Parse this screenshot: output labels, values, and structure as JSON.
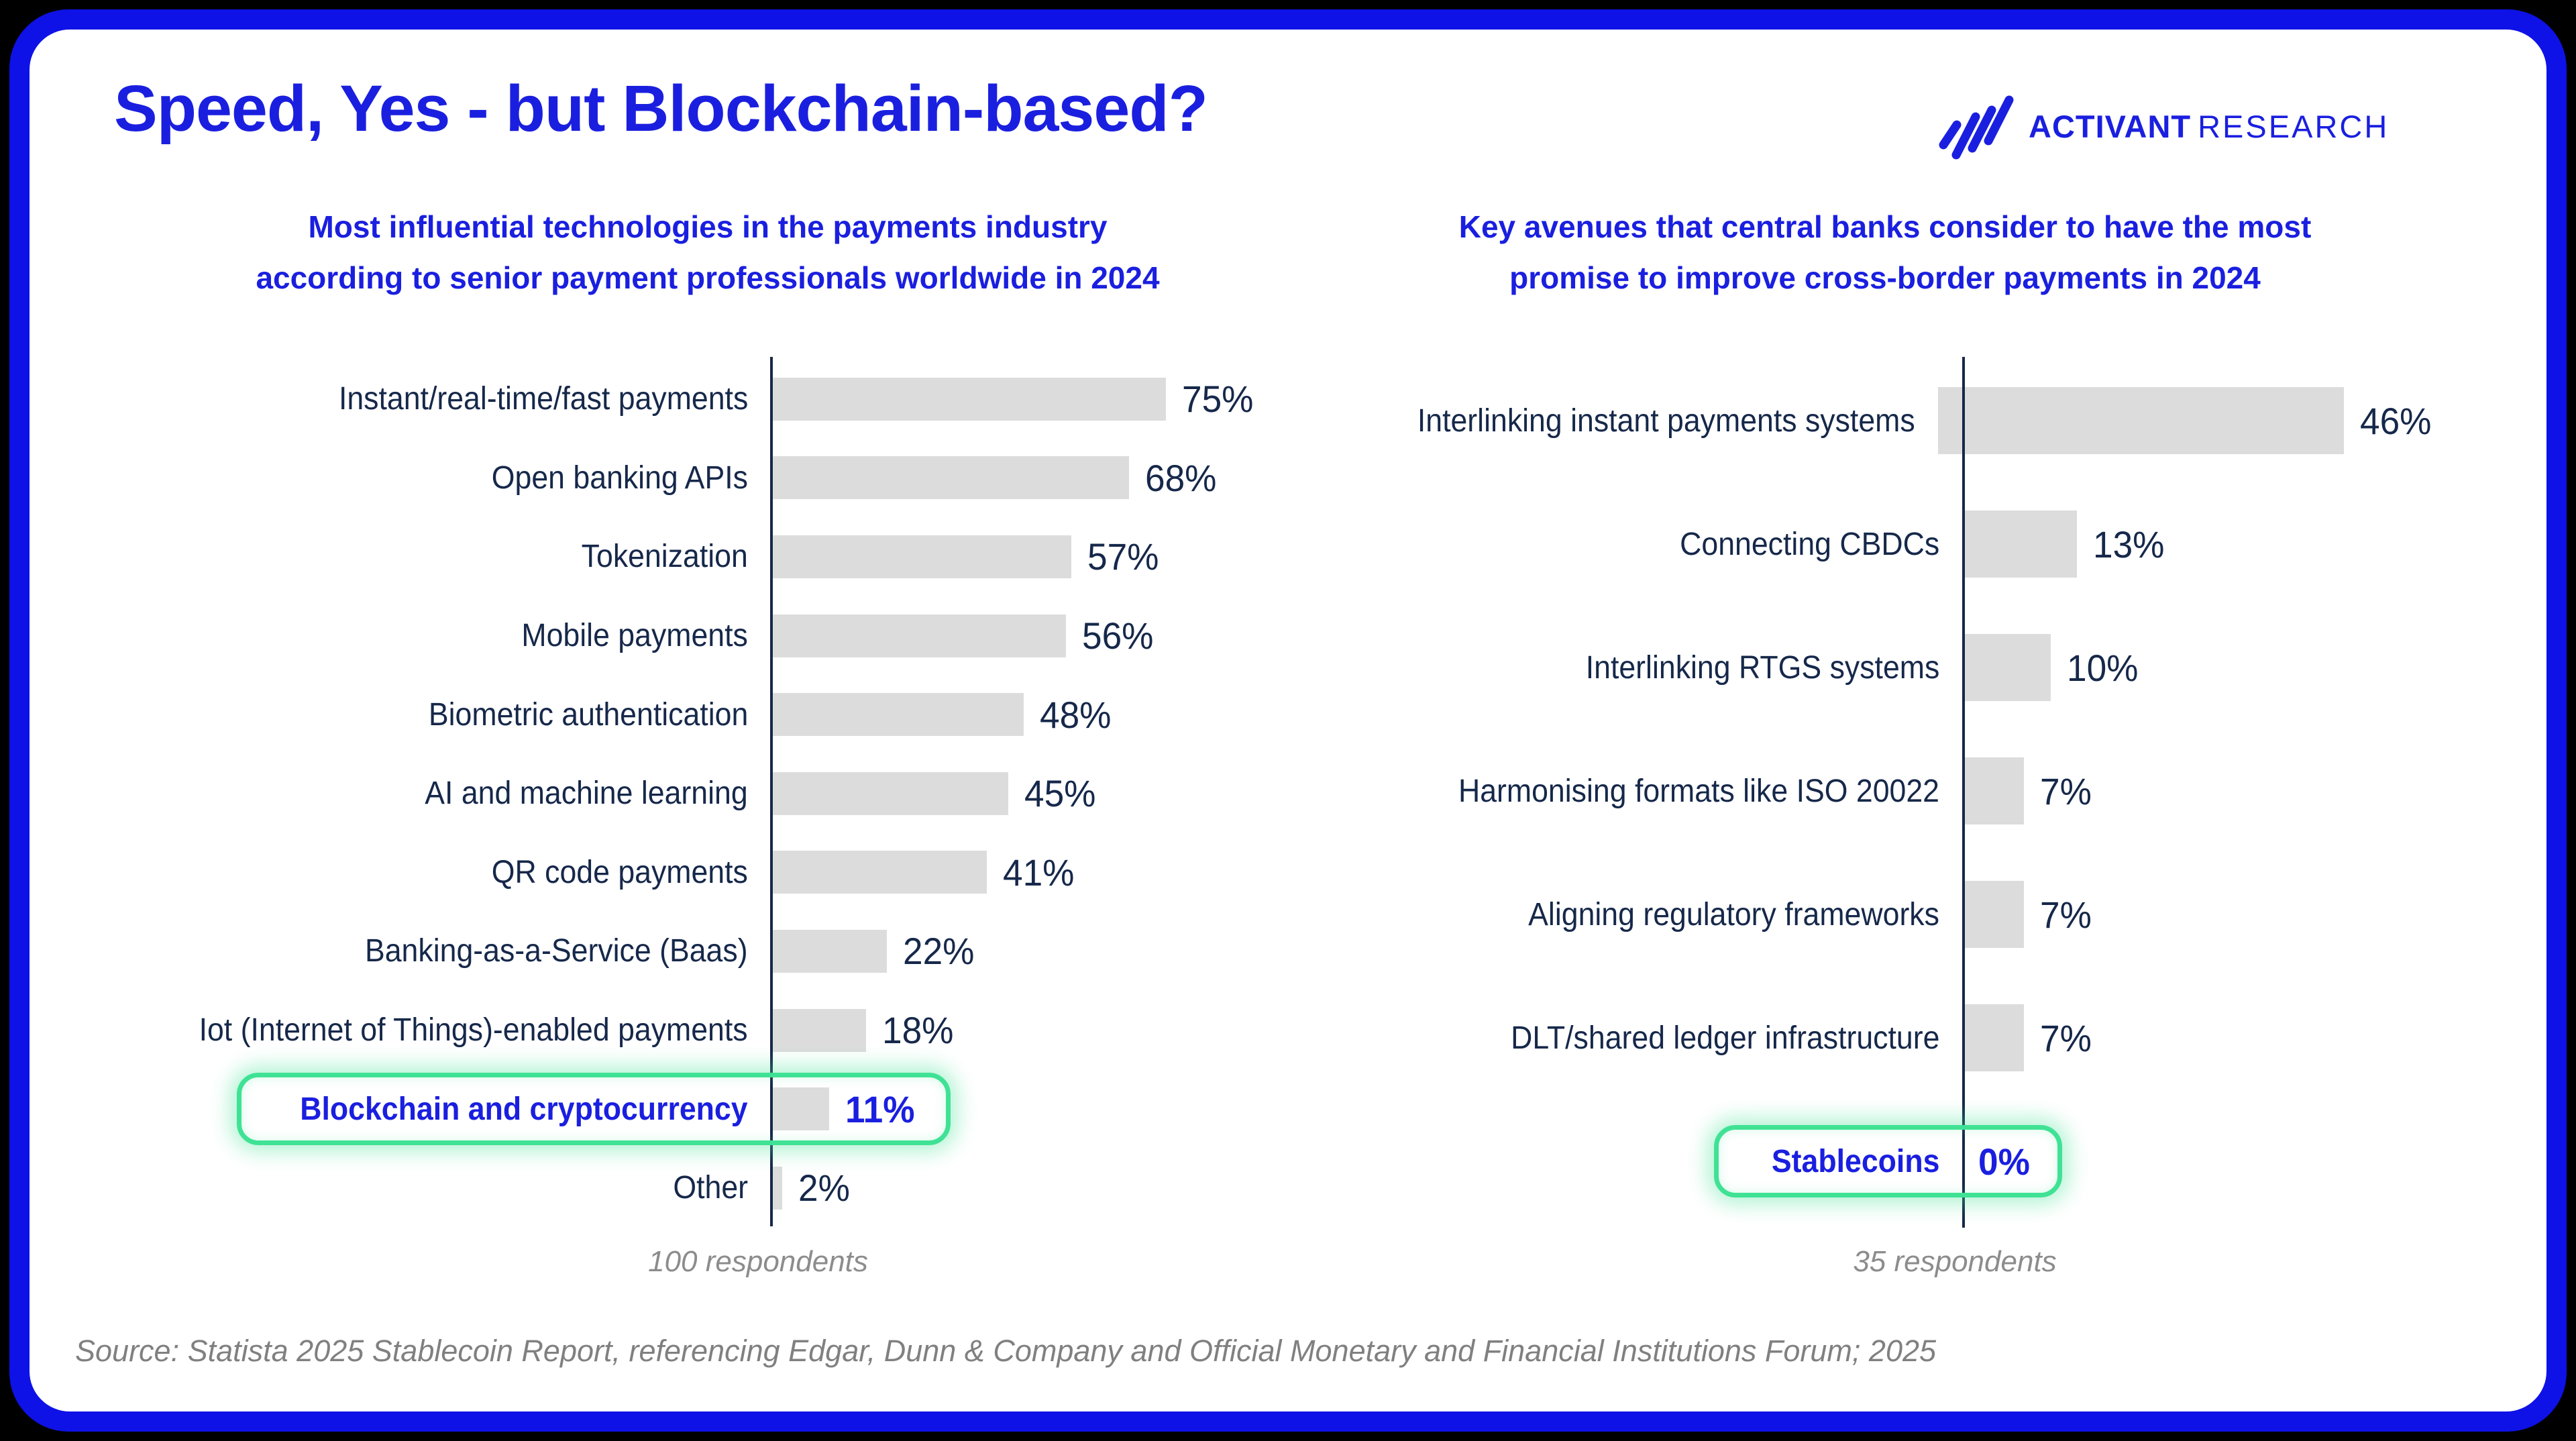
{
  "page": {
    "title": "Speed, Yes - but Blockchain-based?",
    "logo": {
      "brand_bold": "ACTIVANT",
      "brand_light": "RESEARCH",
      "icon": "activant-slashes-icon"
    },
    "source": "Source: Statista 2025 Stablecoin Report, referencing Edgar, Dunn & Company and Official Monetary and Financial Institutions Forum; 2025"
  },
  "colors": {
    "accent_blue": "#1a1fdf",
    "frame_blue": "#0e12e6",
    "label_navy": "#16284a",
    "bar_gray": "#dcdcdc",
    "highlight_green": "#3fe294",
    "muted_gray": "#8c8c8c",
    "source_gray": "#808080"
  },
  "chart_data": [
    {
      "type": "bar",
      "orientation": "horizontal",
      "title": "Most influential technologies in the payments industry according to senior payment professionals worldwide in 2024",
      "title_lines": [
        "Most influential technologies in the payments industry",
        "according to senior payment professionals worldwide in 2024"
      ],
      "categories": [
        "Instant/real-time/fast payments",
        "Open banking APIs",
        "Tokenization",
        "Mobile payments",
        "Biometric authentication",
        "AI and machine learning",
        "QR code payments",
        "Banking-as-a-Service (Baas)",
        "Iot (Internet of Things)-enabled payments",
        "Blockchain and cryptocurrency",
        "Other"
      ],
      "values": [
        75,
        68,
        57,
        56,
        48,
        45,
        41,
        22,
        18,
        11,
        2
      ],
      "value_suffix": "%",
      "xlim": [
        0,
        80
      ],
      "grid": false,
      "legend": false,
      "highlight_category": "Blockchain and cryptocurrency",
      "footnote": "100 respondents"
    },
    {
      "type": "bar",
      "orientation": "horizontal",
      "title": "Key avenues that central banks consider to have the most promise to improve cross-border payments in 2024",
      "title_lines": [
        "Key avenues that central banks consider to have the most",
        "promise to improve cross-border payments in 2024"
      ],
      "categories": [
        "Interlinking instant payments systems",
        "Connecting CBDCs",
        "Interlinking RTGS systems",
        "Harmonising formats like ISO 20022",
        "Aligning regulatory frameworks",
        "DLT/shared ledger infrastructure",
        "Stablecoins"
      ],
      "values": [
        46,
        13,
        10,
        7,
        7,
        7,
        0
      ],
      "value_suffix": "%",
      "xlim": [
        0,
        50
      ],
      "grid": false,
      "legend": false,
      "highlight_category": "Stablecoins",
      "footnote": "35 respondents"
    }
  ]
}
